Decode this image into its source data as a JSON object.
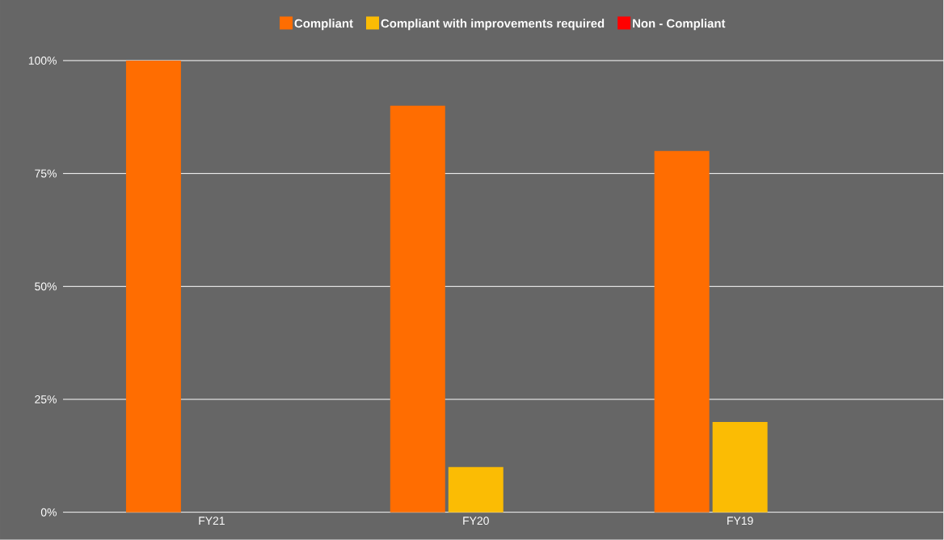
{
  "chart_data": {
    "type": "bar",
    "categories": [
      "FY21",
      "FY20",
      "FY19"
    ],
    "series": [
      {
        "name": "Compliant",
        "color": "#ff6d01",
        "values": [
          100,
          90,
          80
        ]
      },
      {
        "name": "Compliant with improvements required",
        "color": "#fbbc04",
        "values": [
          0,
          10,
          20
        ]
      },
      {
        "name": "Non - Compliant",
        "color": "#ff0000",
        "values": [
          0,
          0,
          0
        ]
      }
    ],
    "ylim": [
      0,
      100
    ],
    "yticks": [
      {
        "value": 0,
        "label": "0%"
      },
      {
        "value": 25,
        "label": "25%"
      },
      {
        "value": 50,
        "label": "50%"
      },
      {
        "value": 75,
        "label": "75%"
      },
      {
        "value": 100,
        "label": "100%"
      }
    ],
    "grid": "y",
    "legend": "top"
  }
}
